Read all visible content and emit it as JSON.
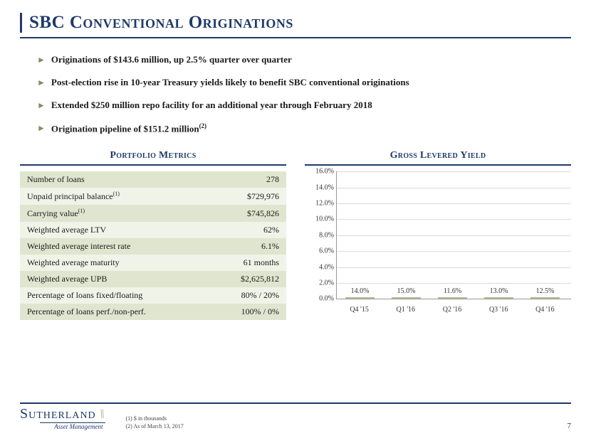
{
  "title": "SBC Conventional Originations",
  "accent_color": "#1f3a68",
  "bullet_marker_color": "#7f8f5f",
  "bullets": [
    "Originations of $143.6 million, up 2.5% quarter over quarter",
    "Post-election rise in 10-year Treasury yields likely to benefit SBC conventional originations",
    "Extended $250 million repo facility for an additional year through February 2018",
    "Origination pipeline of $151.2 million<sup>(2)</sup>"
  ],
  "metrics": {
    "title": "Portfolio Metrics",
    "row_bg_dark": "#dfe5cf",
    "row_bg_light": "#f0f3e8",
    "rows": [
      {
        "label": "Number of loans",
        "value": "278",
        "fn": ""
      },
      {
        "label": "Unpaid principal balance",
        "value": "$729,976",
        "fn": "(1)"
      },
      {
        "label": "Carrying value",
        "value": "$745,826",
        "fn": "(1)"
      },
      {
        "label": "Weighted average LTV",
        "value": "62%",
        "fn": ""
      },
      {
        "label": "Weighted average interest rate",
        "value": "6.1%",
        "fn": ""
      },
      {
        "label": "Weighted average maturity",
        "value": "61 months",
        "fn": ""
      },
      {
        "label": "Weighted average UPB",
        "value": "$2,625,812",
        "fn": ""
      },
      {
        "label": "Percentage of loans fixed/floating",
        "value": "80% / 20%",
        "fn": ""
      },
      {
        "label": "Percentage of loans perf./non-perf.",
        "value": "100% / 0%",
        "fn": ""
      }
    ]
  },
  "chart": {
    "title": "Gross Levered Yield",
    "type": "bar",
    "bar_color": "#c9d3b2",
    "bar_border": "#aebb93",
    "grid_color": "#d9d9d9",
    "axis_color": "#999999",
    "label_fontsize": 10,
    "ylim": [
      0,
      16
    ],
    "ytick_step": 2,
    "yticks": [
      "0.0%",
      "2.0%",
      "4.0%",
      "6.0%",
      "8.0%",
      "10.0%",
      "12.0%",
      "14.0%",
      "16.0%"
    ],
    "categories": [
      "Q4 '15",
      "Q1 '16",
      "Q2 '16",
      "Q3 '16",
      "Q4 '16"
    ],
    "values": [
      14.0,
      15.0,
      11.6,
      13.0,
      12.5
    ],
    "value_labels": [
      "14.0%",
      "15.0%",
      "11.6%",
      "13.0%",
      "12.5%"
    ]
  },
  "logo": {
    "main": "Sutherland",
    "sub": "Asset Management"
  },
  "footnotes": [
    "(1)    $ in thousands",
    "(2)    As of March 13, 2017"
  ],
  "page_number": "7"
}
